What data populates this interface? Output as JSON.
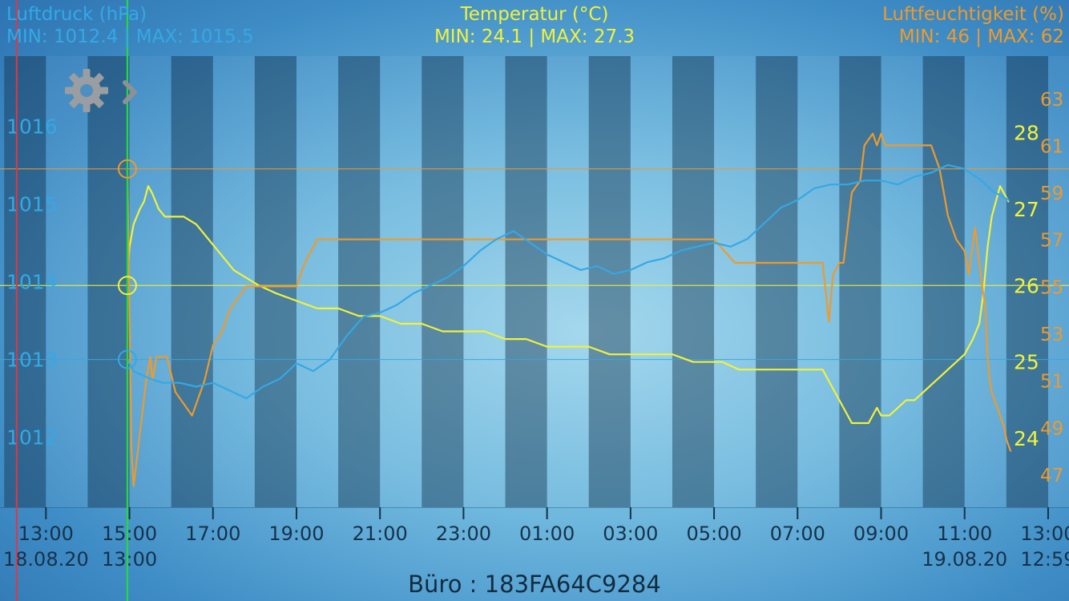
{
  "header": {
    "pressure": {
      "title": "Luftdruck (hPa)",
      "minmax": "MIN: 1012.4 | MAX: 1015.5"
    },
    "temperature": {
      "title": "Temperatur (°C)",
      "minmax": "MIN: 24.1 | MAX: 27.3"
    },
    "humidity": {
      "title": "Luftfeuchtigkeit (%)",
      "minmax": "MIN: 46 | MAX: 62"
    }
  },
  "footer": {
    "device": "Büro : 183FA64C9284"
  },
  "icons": {
    "settings": "gear-icon",
    "next": "chevron-right-icon"
  },
  "colors": {
    "pressure": "#35a8e4",
    "temperature": "#f2f23a",
    "humidity": "#ee9a2c",
    "cursor": "#27d93c",
    "now_marker": "#e8343e"
  },
  "chart_data": {
    "type": "line",
    "x_unit": "hours since 18.08.20 00:00",
    "x_range": [
      11.9,
      37.5
    ],
    "x_ticks": [
      {
        "x": 13,
        "label": "13:00",
        "sub": "18.08.20"
      },
      {
        "x": 15,
        "label": "15:00",
        "sub": "13:00"
      },
      {
        "x": 17,
        "label": "17:00"
      },
      {
        "x": 19,
        "label": "19:00"
      },
      {
        "x": 21,
        "label": "21:00"
      },
      {
        "x": 23,
        "label": "23:00"
      },
      {
        "x": 25,
        "label": "01:00"
      },
      {
        "x": 27,
        "label": "03:00"
      },
      {
        "x": 29,
        "label": "05:00"
      },
      {
        "x": 31,
        "label": "07:00"
      },
      {
        "x": 33,
        "label": "09:00"
      },
      {
        "x": 35,
        "label": "11:00",
        "sub": "19.08.20"
      },
      {
        "x": 37,
        "label": "13:00",
        "sub": "12:59"
      }
    ],
    "axes": {
      "pressure": {
        "label": "Luftdruck (hPa)",
        "range": [
          1011.1,
          1016.9
        ],
        "ticks": [
          1012,
          1013,
          1014,
          1015,
          1016
        ],
        "side": "left"
      },
      "temperature": {
        "label": "Temperatur (°C)",
        "range": [
          23.1,
          29.0
        ],
        "ticks": [
          24,
          25,
          26,
          27,
          28
        ],
        "side": "right"
      },
      "humidity": {
        "label": "Luftfeuchtigkeit (%)",
        "range": [
          45.6,
          64.8
        ],
        "ticks": [
          47,
          49,
          51,
          53,
          55,
          57,
          59,
          61,
          63
        ],
        "side": "right"
      }
    },
    "cursor": {
      "x": 14.95,
      "pressure": 1013.0,
      "temperature": 26.0,
      "humidity": 60.0
    },
    "now_marker_x": 12.3,
    "series": [
      {
        "name": "Temperatur (°C)",
        "axis": "temperature",
        "x": [
          14.95,
          15.0,
          15.1,
          15.25,
          15.35,
          15.45,
          15.55,
          15.7,
          15.85,
          16.0,
          16.3,
          16.6,
          16.9,
          17.2,
          17.5,
          17.8,
          18.1,
          18.5,
          19.0,
          19.5,
          20.0,
          20.5,
          21.0,
          21.5,
          22.0,
          22.5,
          23.0,
          23.5,
          24.0,
          24.5,
          25.0,
          25.5,
          26.0,
          26.5,
          27.0,
          27.5,
          28.0,
          28.5,
          28.9,
          29.2,
          29.6,
          30.0,
          30.4,
          30.8,
          31.0,
          31.2,
          31.4,
          31.6,
          31.7,
          31.9,
          32.1,
          32.3,
          32.5,
          32.7,
          32.9,
          33.0,
          33.2,
          33.4,
          33.6,
          33.8,
          34.0,
          34.2,
          34.4,
          34.6,
          34.8,
          35.0,
          35.2,
          35.35,
          35.45,
          35.55,
          35.65,
          35.75,
          35.85,
          35.95,
          36.05
        ],
        "y": [
          26.0,
          26.5,
          26.8,
          27.0,
          27.1,
          27.3,
          27.2,
          27.0,
          26.9,
          26.9,
          26.9,
          26.8,
          26.6,
          26.4,
          26.2,
          26.1,
          26.0,
          25.9,
          25.8,
          25.7,
          25.7,
          25.6,
          25.6,
          25.5,
          25.5,
          25.4,
          25.4,
          25.4,
          25.3,
          25.3,
          25.2,
          25.2,
          25.2,
          25.1,
          25.1,
          25.1,
          25.1,
          25.0,
          25.0,
          25.0,
          24.9,
          24.9,
          24.9,
          24.9,
          24.9,
          24.9,
          24.9,
          24.9,
          24.8,
          24.6,
          24.4,
          24.2,
          24.2,
          24.2,
          24.4,
          24.3,
          24.3,
          24.4,
          24.5,
          24.5,
          24.6,
          24.7,
          24.8,
          24.9,
          25.0,
          25.1,
          25.3,
          25.5,
          25.9,
          26.5,
          26.9,
          27.1,
          27.3,
          27.2,
          27.1
        ]
      },
      {
        "name": "Luftfeuchtigkeit (%)",
        "axis": "humidity",
        "x": [
          14.95,
          15.05,
          15.1,
          15.2,
          15.3,
          15.4,
          15.5,
          15.55,
          15.65,
          15.75,
          15.9,
          16.1,
          16.3,
          16.5,
          16.6,
          16.8,
          17.0,
          17.2,
          17.4,
          17.6,
          17.8,
          18.0,
          18.2,
          18.5,
          19.0,
          19.2,
          19.5,
          20.0,
          20.5,
          21.0,
          22.0,
          23.0,
          24.0,
          25.0,
          26.0,
          27.0,
          28.0,
          28.6,
          29.0,
          29.5,
          30.0,
          30.5,
          31.0,
          31.4,
          31.6,
          31.75,
          31.85,
          32.0,
          32.1,
          32.3,
          32.5,
          32.6,
          32.8,
          32.9,
          33.0,
          33.1,
          33.2,
          33.4,
          33.6,
          33.8,
          34.0,
          34.2,
          34.4,
          34.6,
          34.8,
          35.0,
          35.1,
          35.25,
          35.35,
          35.5,
          35.55,
          35.6,
          35.65,
          35.75,
          35.85,
          35.95,
          36.0,
          36.1
        ],
        "y": [
          60.0,
          48.0,
          46.5,
          48.0,
          49.5,
          51.0,
          52.0,
          51.0,
          52.0,
          52.0,
          52.0,
          50.5,
          50.0,
          49.5,
          50.0,
          51.0,
          52.5,
          53.0,
          54.0,
          54.5,
          55.0,
          55.0,
          55.0,
          55.0,
          55.0,
          56.0,
          57.0,
          57.0,
          57.0,
          57.0,
          57.0,
          57.0,
          57.0,
          57.0,
          57.0,
          57.0,
          57.0,
          57.0,
          57.0,
          56.0,
          56.0,
          56.0,
          56.0,
          56.0,
          56.0,
          53.5,
          55.5,
          56.0,
          56.0,
          59.0,
          59.5,
          61.0,
          61.5,
          61.0,
          61.5,
          61.0,
          61.0,
          61.0,
          61.0,
          61.0,
          61.0,
          61.0,
          60.0,
          58.0,
          57.0,
          56.5,
          55.5,
          57.5,
          56.0,
          54.0,
          52.0,
          51.0,
          50.5,
          50.0,
          49.5,
          49.0,
          48.5,
          48.0
        ]
      },
      {
        "name": "Luftdruck (hPa)",
        "axis": "pressure",
        "x": [
          14.95,
          15.1,
          15.3,
          15.5,
          15.8,
          16.2,
          16.6,
          17.0,
          17.4,
          17.8,
          18.2,
          18.6,
          19.0,
          19.4,
          19.8,
          20.2,
          20.6,
          21.0,
          21.4,
          21.8,
          22.2,
          22.6,
          23.0,
          23.4,
          23.8,
          24.2,
          24.6,
          25.0,
          25.4,
          25.8,
          26.2,
          26.6,
          27.0,
          27.4,
          27.8,
          28.2,
          28.6,
          29.0,
          29.4,
          29.8,
          30.2,
          30.6,
          31.0,
          31.4,
          31.8,
          32.2,
          32.6,
          33.0,
          33.4,
          33.8,
          34.2,
          34.6,
          35.0,
          35.4,
          35.7,
          35.9,
          36.05
        ],
        "y": [
          1013.0,
          1012.85,
          1012.8,
          1012.75,
          1012.7,
          1012.7,
          1012.65,
          1012.7,
          1012.6,
          1012.5,
          1012.65,
          1012.75,
          1012.95,
          1012.85,
          1013.0,
          1013.3,
          1013.55,
          1013.6,
          1013.7,
          1013.85,
          1013.95,
          1014.05,
          1014.2,
          1014.4,
          1014.55,
          1014.65,
          1014.5,
          1014.35,
          1014.25,
          1014.15,
          1014.2,
          1014.1,
          1014.15,
          1014.25,
          1014.3,
          1014.4,
          1014.45,
          1014.5,
          1014.45,
          1014.55,
          1014.75,
          1014.95,
          1015.05,
          1015.2,
          1015.25,
          1015.25,
          1015.3,
          1015.3,
          1015.25,
          1015.35,
          1015.4,
          1015.5,
          1015.45,
          1015.3,
          1015.15,
          1015.1,
          1015.05
        ]
      }
    ]
  }
}
